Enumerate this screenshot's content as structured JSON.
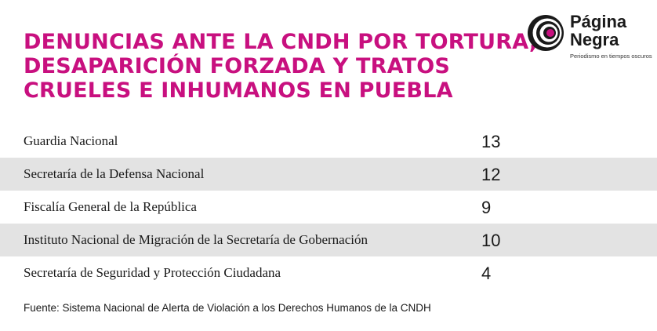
{
  "colors": {
    "title": "#c8107f",
    "row_shade": "#e3e3e3",
    "brand_accent": "#c8107f"
  },
  "logo": {
    "line1": "Página",
    "line2": "Negra",
    "tagline": "Periodismo en tiempos oscuros",
    "icon": "concentric-circles-logo-icon"
  },
  "chart_data": {
    "type": "table",
    "title_lines": [
      "DENUNCIAS ANTE LA CNDH POR TORTURA,",
      "DESAPARICIÓN FORZADA Y TRATOS",
      "CRUELES E INHUMANOS EN PUEBLA"
    ],
    "categories": [
      "Guardia Nacional",
      "Secretaría de la Defensa Nacional",
      "Fiscalía General de la República",
      "Instituto Nacional de Migración de la Secretaría de Gobernación",
      "Secretaría de Seguridad y Protección Ciudadana"
    ],
    "values": [
      13,
      12,
      9,
      10,
      4
    ],
    "source": "Fuente: Sistema Nacional de Alerta de Violación a los Derechos Humanos de la CNDH"
  }
}
